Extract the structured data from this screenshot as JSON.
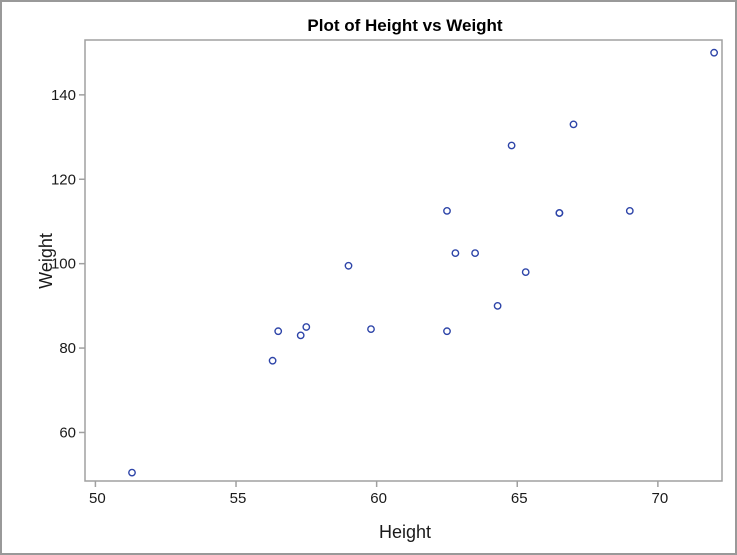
{
  "chart_data": {
    "type": "scatter",
    "title": "Plot of Height vs Weight",
    "xlabel": "Height",
    "ylabel": "Weight",
    "x_ticks": [
      50,
      55,
      60,
      65,
      70
    ],
    "y_ticks": [
      60,
      80,
      100,
      120,
      140
    ],
    "xlim": [
      49.63,
      72.28
    ],
    "ylim": [
      48.5,
      153.0
    ],
    "grid": false,
    "legend": false,
    "marker": {
      "shape": "open-circle",
      "color": "#2d44a8"
    },
    "frame_color": "#a0a0a0",
    "border_color": "#999999",
    "text_color": "#1a1a1a",
    "points": [
      {
        "x": 69.0,
        "y": 112.5
      },
      {
        "x": 56.5,
        "y": 84.0
      },
      {
        "x": 65.3,
        "y": 98.0
      },
      {
        "x": 62.8,
        "y": 102.5
      },
      {
        "x": 63.5,
        "y": 102.5
      },
      {
        "x": 57.3,
        "y": 83.0
      },
      {
        "x": 59.8,
        "y": 84.5
      },
      {
        "x": 62.5,
        "y": 112.5
      },
      {
        "x": 62.5,
        "y": 84.0
      },
      {
        "x": 59.0,
        "y": 99.5
      },
      {
        "x": 51.3,
        "y": 50.5
      },
      {
        "x": 64.3,
        "y": 90.0
      },
      {
        "x": 56.3,
        "y": 77.0
      },
      {
        "x": 66.5,
        "y": 112.0
      },
      {
        "x": 72.0,
        "y": 150.0
      },
      {
        "x": 64.8,
        "y": 128.0
      },
      {
        "x": 67.0,
        "y": 133.0
      },
      {
        "x": 57.5,
        "y": 85.0
      },
      {
        "x": 66.5,
        "y": 112.0
      }
    ]
  }
}
